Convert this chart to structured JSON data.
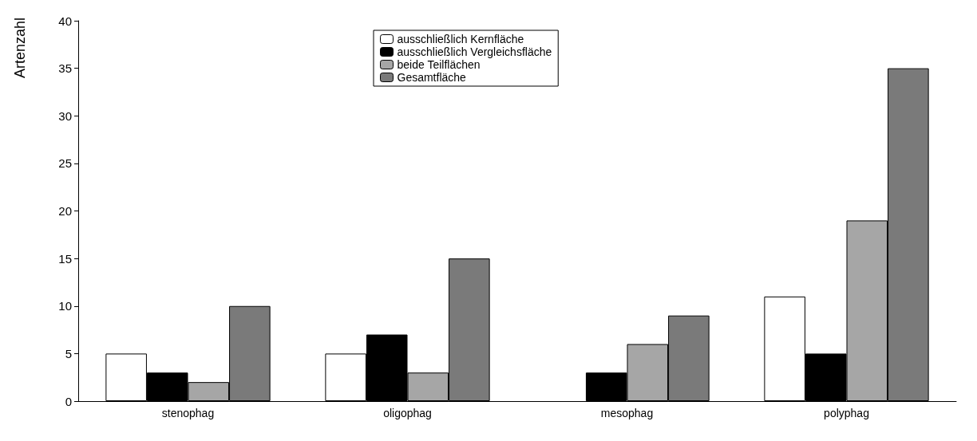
{
  "chart_data": {
    "type": "bar",
    "ylabel": "Artenzahl",
    "categories": [
      "stenophag",
      "oligophag",
      "mesophag",
      "polyphag"
    ],
    "series": [
      {
        "name": "ausschließlich Kernfläche",
        "color": "#ffffff",
        "values": [
          5,
          5,
          0,
          11
        ]
      },
      {
        "name": "ausschließlich Vergleichsfläche",
        "color": "#000000",
        "values": [
          3,
          7,
          3,
          5
        ]
      },
      {
        "name": "beide Teilflächen",
        "color": "#a6a6a6",
        "values": [
          2,
          3,
          6,
          19
        ]
      },
      {
        "name": "Gesamtfläche",
        "color": "#7a7a7a",
        "values": [
          10,
          15,
          9,
          35
        ]
      }
    ],
    "ylim": [
      0,
      40
    ],
    "yticks": [
      0,
      5,
      10,
      15,
      20,
      25,
      30,
      35,
      40
    ],
    "grid": false,
    "legend": "top"
  }
}
